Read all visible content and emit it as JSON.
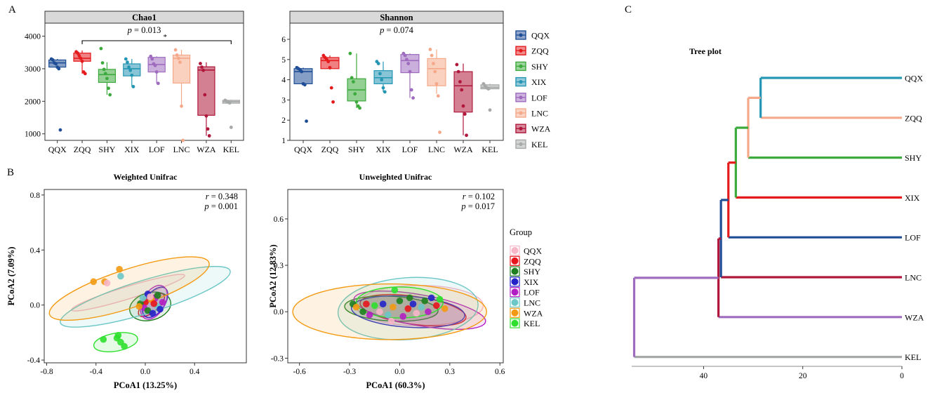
{
  "panels": {
    "A": "A",
    "B": "B",
    "C": "C"
  },
  "groups": [
    "QQX",
    "ZQQ",
    "SHY",
    "XIX",
    "LOF",
    "LNC",
    "WZA",
    "KEL"
  ],
  "colors": {
    "QQX": "#1F4E96",
    "ZQQ": "#E41A1C",
    "SHY": "#3CAA3C",
    "XIX": "#2596B4",
    "LOF": "#9E6BBF",
    "LNC": "#F5A98A",
    "WZA": "#B0173B",
    "KEL": "#A7A9A9"
  },
  "pcoa_colors": {
    "QQX": "#F7B6C8",
    "ZQQ": "#E8141C",
    "SHY": "#1E7F1E",
    "XIX": "#2222C8",
    "LOF": "#B21EC3",
    "LNC": "#6CC7C7",
    "WZA": "#F39A12",
    "KEL": "#2EE02E"
  },
  "chart_data": [
    {
      "type": "box",
      "id": "chao1",
      "title": "Chao1",
      "categories": [
        "QQX",
        "ZQQ",
        "SHY",
        "XIX",
        "LOF",
        "LNC",
        "WZA",
        "KEL"
      ],
      "ylim": [
        800,
        4400
      ],
      "yticks": [
        1000,
        2000,
        3000,
        4000
      ],
      "annotation": "p = 0.013",
      "sig_bracket": [
        "ZQQ",
        "KEL"
      ],
      "sig_marker": "*",
      "boxes": [
        {
          "q1": 3050,
          "median": 3180,
          "q3": 3270,
          "lo": 3000,
          "hi": 3300,
          "points": [
            3300,
            3270,
            3180,
            3150,
            3050,
            3000,
            1120
          ]
        },
        {
          "q1": 3230,
          "median": 3320,
          "q3": 3480,
          "lo": 2850,
          "hi": 3560,
          "points": [
            3520,
            3480,
            3400,
            3320,
            3230,
            2900,
            2850
          ]
        },
        {
          "q1": 2580,
          "median": 2820,
          "q3": 2980,
          "lo": 2200,
          "hi": 3200,
          "points": [
            3620,
            3180,
            2980,
            2850,
            2700,
            2400,
            2200
          ]
        },
        {
          "q1": 2780,
          "median": 3000,
          "q3": 3150,
          "lo": 2450,
          "hi": 3300,
          "points": [
            3300,
            3200,
            3050,
            2950,
            2800,
            2450
          ]
        },
        {
          "q1": 2900,
          "median": 3130,
          "q3": 3350,
          "lo": 2550,
          "hi": 3380,
          "points": [
            3380,
            3300,
            3150,
            3100,
            2900,
            2550
          ]
        },
        {
          "q1": 2560,
          "median": 3320,
          "q3": 3420,
          "lo": 1850,
          "hi": 3580,
          "points": [
            3580,
            3420,
            3320,
            3200,
            1850,
            800
          ]
        },
        {
          "q1": 1570,
          "median": 2960,
          "q3": 3060,
          "lo": 940,
          "hi": 3200,
          "points": [
            3160,
            3050,
            2950,
            2200,
            1550,
            1150,
            940
          ]
        },
        {
          "q1": 1940,
          "median": 1990,
          "q3": 2030,
          "lo": 1930,
          "hi": 2050,
          "points": [
            2030,
            2000,
            1980,
            1950,
            1200
          ]
        }
      ]
    },
    {
      "type": "box",
      "id": "shannon",
      "title": "Shannon",
      "categories": [
        "QQX",
        "ZQQ",
        "SHY",
        "XIX",
        "LOF",
        "LNC",
        "WZA",
        "KEL"
      ],
      "ylim": [
        1,
        6.8
      ],
      "yticks": [
        1,
        2,
        3,
        4,
        5,
        6
      ],
      "annotation": "p = 0.074",
      "boxes": [
        {
          "q1": 3.8,
          "median": 4.4,
          "q3": 4.55,
          "lo": 3.75,
          "hi": 4.6,
          "points": [
            4.6,
            4.55,
            4.5,
            4.4,
            3.8,
            3.75,
            1.95
          ]
        },
        {
          "q1": 4.55,
          "median": 4.95,
          "q3": 5.1,
          "lo": 4.5,
          "hi": 5.2,
          "points": [
            5.2,
            5.1,
            5.0,
            4.9,
            4.6,
            3.6,
            2.9
          ]
        },
        {
          "q1": 2.95,
          "median": 3.5,
          "q3": 4.05,
          "lo": 2.6,
          "hi": 5.3,
          "points": [
            5.3,
            4.1,
            3.9,
            3.3,
            2.9,
            2.7,
            2.6
          ]
        },
        {
          "q1": 3.8,
          "median": 4.1,
          "q3": 4.45,
          "lo": 3.4,
          "hi": 4.9,
          "points": [
            4.9,
            4.8,
            4.3,
            4.0,
            3.6,
            3.4
          ]
        },
        {
          "q1": 4.35,
          "median": 4.95,
          "q3": 5.25,
          "lo": 3.1,
          "hi": 5.3,
          "points": [
            5.3,
            5.2,
            5.0,
            4.8,
            4.4,
            3.5,
            3.1
          ]
        },
        {
          "q1": 3.7,
          "median": 4.55,
          "q3": 5.05,
          "lo": 3.3,
          "hi": 5.5,
          "points": [
            5.5,
            5.2,
            4.8,
            4.4,
            3.8,
            3.2,
            1.4
          ]
        },
        {
          "q1": 2.4,
          "median": 3.7,
          "q3": 4.4,
          "lo": 1.25,
          "hi": 4.8,
          "points": [
            4.75,
            4.4,
            3.9,
            3.5,
            2.7,
            2.3,
            1.25
          ]
        },
        {
          "q1": 3.55,
          "median": 3.62,
          "q3": 3.75,
          "lo": 3.5,
          "hi": 3.8,
          "points": [
            3.8,
            3.7,
            3.6,
            3.55,
            2.5
          ]
        }
      ]
    },
    {
      "type": "scatter",
      "id": "weighted",
      "title": "Weighted Unifrac",
      "xlabel": "PCoA1 (13.25%)",
      "ylabel": "PCoA2 (7.09%)",
      "xlim": [
        -0.82,
        0.82
      ],
      "ylim": [
        -0.42,
        0.84
      ],
      "xticks": [
        -0.8,
        -0.4,
        0.0,
        0.4
      ],
      "yticks": [
        -0.4,
        0.0,
        0.4,
        0.8
      ],
      "stats": [
        "r = 0.348",
        "p = 0.001"
      ],
      "ellipses": [
        {
          "group": "QQX",
          "cx": -0.14,
          "cy": 0.09,
          "rx": 0.48,
          "ry": 0.045,
          "angle": -17
        },
        {
          "group": "ZQQ",
          "cx": 0.05,
          "cy": 0.0,
          "rx": 0.13,
          "ry": 0.05,
          "angle": -40
        },
        {
          "group": "SHY",
          "cx": 0.04,
          "cy": -0.01,
          "rx": 0.17,
          "ry": 0.1,
          "angle": -15
        },
        {
          "group": "XIX",
          "cx": 0.08,
          "cy": 0.02,
          "rx": 0.14,
          "ry": 0.07,
          "angle": -55
        },
        {
          "group": "LOF",
          "cx": 0.07,
          "cy": 0.02,
          "rx": 0.15,
          "ry": 0.08,
          "angle": -60
        },
        {
          "group": "LNC",
          "cx": 0.0,
          "cy": 0.06,
          "rx": 0.72,
          "ry": 0.12,
          "angle": -17
        },
        {
          "group": "WZA",
          "cx": -0.13,
          "cy": 0.12,
          "rx": 0.68,
          "ry": 0.14,
          "angle": -18
        },
        {
          "group": "KEL",
          "cx": -0.24,
          "cy": -0.27,
          "rx": 0.18,
          "ry": 0.065,
          "angle": -10
        }
      ],
      "points": [
        {
          "group": "WZA",
          "x": -0.42,
          "y": 0.17
        },
        {
          "group": "WZA",
          "x": -0.33,
          "y": 0.17
        },
        {
          "group": "WZA",
          "x": -0.21,
          "y": 0.26
        },
        {
          "group": "QQX",
          "x": -0.31,
          "y": 0.16
        },
        {
          "group": "LNC",
          "x": -0.2,
          "y": 0.21
        },
        {
          "group": "KEL",
          "x": -0.34,
          "y": -0.25
        },
        {
          "group": "KEL",
          "x": -0.23,
          "y": -0.24
        },
        {
          "group": "KEL",
          "x": -0.2,
          "y": -0.27
        },
        {
          "group": "KEL",
          "x": -0.17,
          "y": -0.3
        },
        {
          "group": "KEL",
          "x": -0.22,
          "y": -0.22
        },
        {
          "group": "XIX",
          "x": 0.02,
          "y": 0.08
        },
        {
          "group": "LOF",
          "x": 0.08,
          "y": 0.05
        },
        {
          "group": "ZQQ",
          "x": 0.0,
          "y": 0.02
        },
        {
          "group": "SHY",
          "x": -0.04,
          "y": 0.01
        },
        {
          "group": "LNC",
          "x": 0.1,
          "y": -0.01
        },
        {
          "group": "LOF",
          "x": -0.01,
          "y": -0.02
        },
        {
          "group": "WZA",
          "x": 0.05,
          "y": 0.04
        },
        {
          "group": "XIX",
          "x": 0.12,
          "y": -0.03
        },
        {
          "group": "SHY",
          "x": 0.02,
          "y": -0.04
        },
        {
          "group": "ZQQ",
          "x": 0.07,
          "y": 0.01
        },
        {
          "group": "QQX",
          "x": 0.04,
          "y": 0.06
        },
        {
          "group": "LNC",
          "x": -0.02,
          "y": 0.05
        },
        {
          "group": "LOF",
          "x": 0.14,
          "y": 0.02
        },
        {
          "group": "XIX",
          "x": 0.06,
          "y": -0.06
        },
        {
          "group": "SHY",
          "x": 0.1,
          "y": 0.07
        },
        {
          "group": "WZA",
          "x": -0.05,
          "y": -0.01
        }
      ]
    },
    {
      "type": "scatter",
      "id": "unweighted",
      "title": "Unweighted Unifrac",
      "xlabel": "PCoA1 (60.3%)",
      "ylabel": "PCoA2 (12.83%)",
      "xlim": [
        -0.67,
        0.62
      ],
      "ylim": [
        -0.33,
        0.79
      ],
      "xticks": [
        -0.6,
        -0.3,
        0.0,
        0.3,
        0.6
      ],
      "yticks": [
        -0.3,
        0.0,
        0.3,
        0.6
      ],
      "stats": [
        "r = 0.102",
        "p = 0.017"
      ],
      "ellipses": [
        {
          "group": "QQX",
          "cx": 0.12,
          "cy": 0.04,
          "rx": 0.38,
          "ry": 0.13,
          "angle": 0
        },
        {
          "group": "ZQQ",
          "cx": 0.08,
          "cy": 0.01,
          "rx": 0.32,
          "ry": 0.09,
          "angle": 8
        },
        {
          "group": "SHY",
          "cx": -0.05,
          "cy": 0.02,
          "rx": 0.28,
          "ry": 0.08,
          "angle": 3
        },
        {
          "group": "XIX",
          "cx": 0.05,
          "cy": 0.0,
          "rx": 0.34,
          "ry": 0.1,
          "angle": 4
        },
        {
          "group": "LOF",
          "cx": 0.12,
          "cy": 0.01,
          "rx": 0.4,
          "ry": 0.1,
          "angle": 10
        },
        {
          "group": "LNC",
          "cx": 0.05,
          "cy": 0.02,
          "rx": 0.42,
          "ry": 0.2,
          "angle": -4
        },
        {
          "group": "WZA",
          "cx": -0.06,
          "cy": 0.0,
          "rx": 0.58,
          "ry": 0.18,
          "angle": 0
        },
        {
          "group": "KEL",
          "cx": 0.0,
          "cy": 0.06,
          "rx": 0.26,
          "ry": 0.1,
          "angle": 0
        }
      ],
      "points": [
        {
          "group": "SHY",
          "x": -0.28,
          "y": 0.05
        },
        {
          "group": "WZA",
          "x": -0.26,
          "y": 0.03
        },
        {
          "group": "SHY",
          "x": -0.22,
          "y": 0.0
        },
        {
          "group": "ZQQ",
          "x": -0.2,
          "y": 0.05
        },
        {
          "group": "LOF",
          "x": -0.18,
          "y": -0.02
        },
        {
          "group": "KEL",
          "x": -0.15,
          "y": 0.04
        },
        {
          "group": "QQX",
          "x": -0.12,
          "y": 0.0
        },
        {
          "group": "XIX",
          "x": -0.1,
          "y": 0.05
        },
        {
          "group": "LNC",
          "x": -0.07,
          "y": -0.02
        },
        {
          "group": "WZA",
          "x": -0.04,
          "y": 0.03
        },
        {
          "group": "SHY",
          "x": 0.0,
          "y": 0.07
        },
        {
          "group": "KEL",
          "x": -0.03,
          "y": 0.14
        },
        {
          "group": "LOF",
          "x": 0.02,
          "y": -0.03
        },
        {
          "group": "ZQQ",
          "x": 0.05,
          "y": 0.02
        },
        {
          "group": "XIX",
          "x": 0.08,
          "y": 0.05
        },
        {
          "group": "QQX",
          "x": 0.1,
          "y": -0.01
        },
        {
          "group": "LNC",
          "x": 0.13,
          "y": 0.03
        },
        {
          "group": "SHY",
          "x": 0.15,
          "y": 0.07
        },
        {
          "group": "LOF",
          "x": 0.17,
          "y": 0.0
        },
        {
          "group": "XIX",
          "x": 0.19,
          "y": 0.09
        },
        {
          "group": "ZQQ",
          "x": 0.22,
          "y": 0.04
        },
        {
          "group": "KEL",
          "x": 0.24,
          "y": 0.08
        },
        {
          "group": "WZA",
          "x": 0.27,
          "y": 0.02
        },
        {
          "group": "QQX",
          "x": -0.05,
          "y": -0.06
        },
        {
          "group": "SHY",
          "x": 0.06,
          "y": 0.09
        }
      ]
    },
    {
      "type": "dendrogram",
      "id": "tree",
      "title": "Tree plot",
      "leaves": [
        "QQX",
        "ZQQ",
        "SHY",
        "XIX",
        "LOF",
        "LNC",
        "WZA",
        "KEL"
      ],
      "xlim": [
        54.5,
        0
      ],
      "xticks": [
        40,
        20,
        0
      ],
      "merges": [
        {
          "children": [
            0,
            1
          ],
          "height": 28.5,
          "color": "#2596B4"
        },
        {
          "children": [
            8,
            2
          ],
          "height": 31.0,
          "color": "#F5A98A"
        },
        {
          "children": [
            9,
            3
          ],
          "height": 33.5,
          "color": "#3CAA3C"
        },
        {
          "children": [
            10,
            4
          ],
          "height": 35.0,
          "color": "#E41A1C"
        },
        {
          "children": [
            11,
            5
          ],
          "height": 36.5,
          "color": "#1F4E96"
        },
        {
          "children": [
            12,
            6
          ],
          "height": 37.0,
          "color": "#B0173B"
        },
        {
          "children": [
            13,
            7
          ],
          "height": 54.0,
          "color": "#9E6BBF"
        }
      ],
      "leaf_colors": [
        "#2596B4",
        "#F5A98A",
        "#3CAA3C",
        "#E41A1C",
        "#1F4E96",
        "#B0173B",
        "#9E6BBF",
        "#A7A9A9"
      ]
    }
  ],
  "legends": {
    "box_legend": [
      "QQX",
      "ZQQ",
      "SHY",
      "XIX",
      "LOF",
      "LNC",
      "WZA",
      "KEL"
    ],
    "pcoa_legend_title": "Group",
    "pcoa_legend": [
      "QQX",
      "ZQQ",
      "SHY",
      "XIX",
      "LOF",
      "LNC",
      "WZA",
      "KEL"
    ]
  }
}
